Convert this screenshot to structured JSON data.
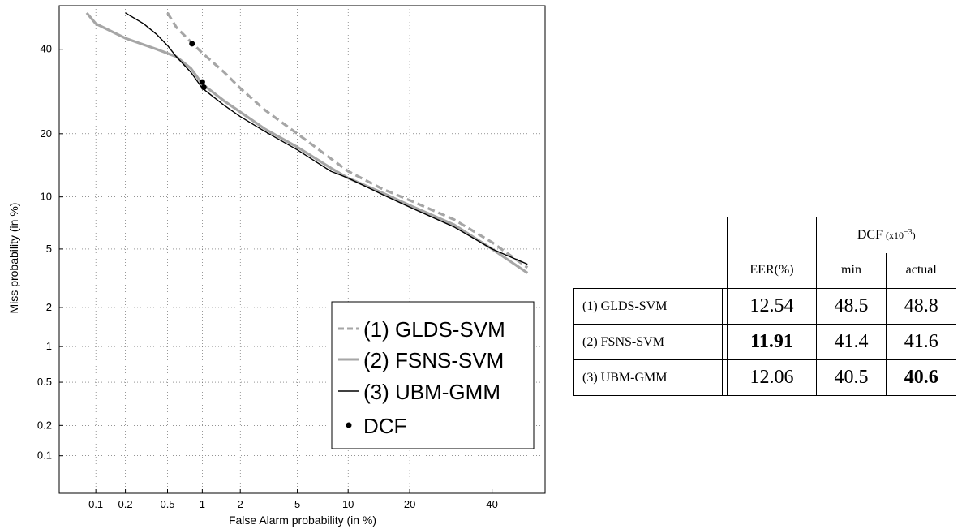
{
  "chart_data": {
    "type": "line",
    "xlabel": "False Alarm probability (in %)",
    "ylabel": "Miss probability (in %)",
    "x_scale": "probit",
    "y_scale": "probit",
    "xlim": [
      0.04,
      55
    ],
    "ylim": [
      0.04,
      52
    ],
    "x_ticks": [
      "0.1",
      "0.2",
      "0.5",
      "1",
      "2",
      "5",
      "10",
      "20",
      "40"
    ],
    "y_ticks": [
      "0.1",
      "0.2",
      "0.5",
      "1",
      "2",
      "5",
      "10",
      "20",
      "40"
    ],
    "grid": true,
    "legend_position": "bottom-right",
    "series": [
      {
        "name": "(1) GLDS-SVM",
        "color": "#a6a6a6",
        "dash": "dashed",
        "x": [
          0.5,
          0.6,
          0.8,
          1.0,
          1.5,
          2,
          3,
          5,
          8,
          10,
          15,
          20,
          30,
          40,
          50
        ],
        "y": [
          50,
          46,
          42,
          39,
          34,
          30,
          25,
          20,
          15.5,
          13.5,
          11,
          9.6,
          7.5,
          5.5,
          3.8
        ]
      },
      {
        "name": "(2) FSNS-SVM",
        "color": "#a6a6a6",
        "dash": "solid",
        "x": [
          0.08,
          0.1,
          0.2,
          0.4,
          0.6,
          0.8,
          1.0,
          1.5,
          2,
          3,
          5,
          8,
          10,
          15,
          20,
          30,
          40,
          50
        ],
        "y": [
          50,
          47,
          43,
          40,
          38,
          35,
          31,
          27,
          24.5,
          21,
          17.5,
          14,
          12.5,
          10.5,
          9,
          7,
          5,
          3.5
        ]
      },
      {
        "name": "(3) UBM-GMM",
        "color": "#000000",
        "dash": "solid",
        "x": [
          0.2,
          0.3,
          0.4,
          0.5,
          0.6,
          0.8,
          1.0,
          1.5,
          2,
          3,
          5,
          8,
          10,
          15,
          20,
          30,
          40,
          50
        ],
        "y": [
          50,
          47,
          44,
          41,
          38,
          34,
          30,
          26,
          23.5,
          20.5,
          17,
          13.5,
          12.5,
          10.3,
          8.8,
          6.8,
          5,
          4
        ]
      }
    ],
    "dcf_label": "DCF",
    "dcf_points": [
      {
        "x": 0.82,
        "y": 41.5
      },
      {
        "x": 1.0,
        "y": 31.5
      },
      {
        "x": 1.03,
        "y": 30.2
      }
    ]
  },
  "table": {
    "header": {
      "eer": "EER(%)",
      "dcf": "DCF",
      "dcf_unit_base": "(x10",
      "dcf_unit_exp": "−3",
      "dcf_unit_close": ")",
      "min": "min",
      "actual": "actual"
    },
    "rows": [
      {
        "system": "(1) GLDS-SVM",
        "eer": "12.54",
        "dcf_min": "48.5",
        "dcf_actual": "48.8"
      },
      {
        "system": "(2) FSNS-SVM",
        "eer": "11.91",
        "dcf_min": "41.4",
        "dcf_actual": "41.6"
      },
      {
        "system": "(3) UBM-GMM",
        "eer": "12.06",
        "dcf_min": "40.5",
        "dcf_actual": "40.6"
      }
    ]
  }
}
